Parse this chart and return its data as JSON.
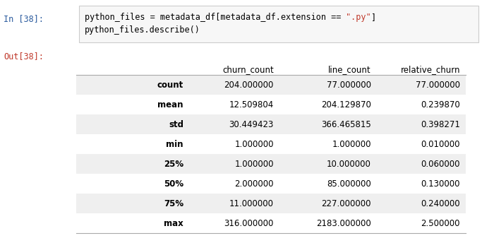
{
  "in_label": "In [38]:",
  "out_label": "Out[38]:",
  "code_line1_plain": "python_files = metadata_df[metadata_df.extension == ",
  "code_line1_string": "\".py\"",
  "code_line1_end": "]",
  "code_line2": "python_files.describe()",
  "columns": [
    "churn_count",
    "line_count",
    "relative_churn"
  ],
  "rows": [
    [
      "count",
      "204.000000",
      "77.000000",
      "77.000000"
    ],
    [
      "mean",
      "12.509804",
      "204.129870",
      "0.239870"
    ],
    [
      "std",
      "30.449423",
      "366.465815",
      "0.398271"
    ],
    [
      "min",
      "1.000000",
      "1.000000",
      "0.010000"
    ],
    [
      "25%",
      "1.000000",
      "10.000000",
      "0.060000"
    ],
    [
      "50%",
      "2.000000",
      "85.000000",
      "0.130000"
    ],
    [
      "75%",
      "11.000000",
      "227.000000",
      "0.240000"
    ],
    [
      "max",
      "316.000000",
      "2183.000000",
      "2.500000"
    ]
  ],
  "shaded_rows": [
    0,
    2,
    4,
    6
  ],
  "bg_color": "#ffffff",
  "cell_bg_shaded": "#efefef",
  "cell_bg_white": "#ffffff",
  "code_bg": "#f7f7f7",
  "code_border": "#cccccc",
  "in_label_color": "#2b5b9e",
  "out_label_color": "#c0392b",
  "string_color": "#c0392b",
  "text_color": "#000000",
  "line_color": "#aaaaaa",
  "font_size": 8.5,
  "code_font_size": 8.5,
  "label_font_size": 8.5
}
